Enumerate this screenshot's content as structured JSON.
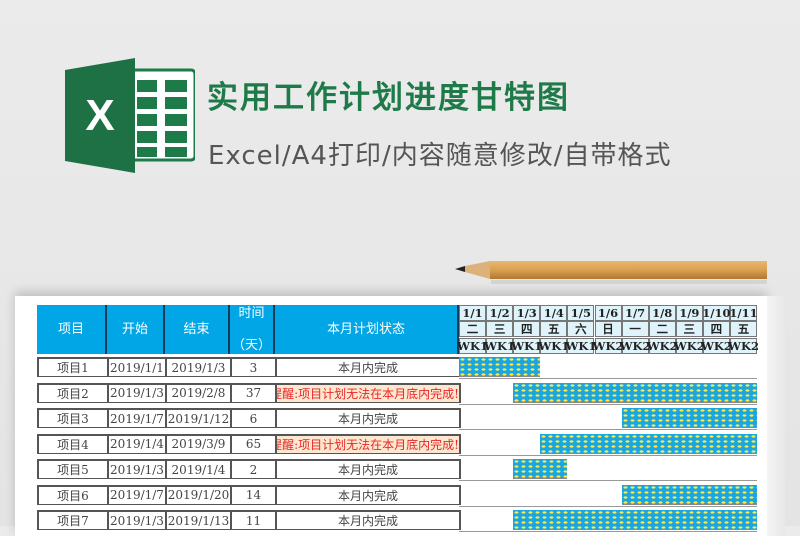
{
  "header": {
    "title": "实用工作计划进度甘特图",
    "subtitle": "Excel/A4打印/内容随意修改/自带格式",
    "logo_letter": "X"
  },
  "colors": {
    "title": "#1f7a4a",
    "header_bg": "#00a6e6",
    "bar": "#1aa6e0",
    "bar_dots": "#ffe84a",
    "warn_bg": "#fde8cf",
    "warn_text": "#e8262a"
  },
  "table": {
    "columns": [
      "项目",
      "开始",
      "结束",
      "时间（天）",
      "本月计划状态"
    ],
    "col_time_line1": "时间",
    "col_time_line2": "（天）",
    "rows": [
      {
        "name": "项目1",
        "start": "2019/1/1",
        "end": "2019/1/3",
        "days": "3",
        "status": "本月内完成",
        "warn": false
      },
      {
        "name": "项目2",
        "start": "2019/1/3",
        "end": "2019/2/8",
        "days": "37",
        "status": "提醒:项目计划无法在本月底内完成!",
        "warn": true
      },
      {
        "name": "项目3",
        "start": "2019/1/7",
        "end": "2019/1/12",
        "days": "6",
        "status": "本月内完成",
        "warn": false
      },
      {
        "name": "项目4",
        "start": "2019/1/4",
        "end": "2019/3/9",
        "days": "65",
        "status": "提醒:项目计划无法在本月底内完成!",
        "warn": true
      },
      {
        "name": "项目5",
        "start": "2019/1/3",
        "end": "2019/1/4",
        "days": "2",
        "status": "本月内完成",
        "warn": false
      },
      {
        "name": "项目6",
        "start": "2019/1/7",
        "end": "2019/1/20",
        "days": "14",
        "status": "本月内完成",
        "warn": false
      },
      {
        "name": "项目7",
        "start": "2019/1/3",
        "end": "2019/1/13",
        "days": "11",
        "status": "本月内完成",
        "warn": false
      }
    ]
  },
  "gantt": {
    "dates": [
      "1/1",
      "1/2",
      "1/3",
      "1/4",
      "1/5",
      "1/6",
      "1/7",
      "1/8",
      "1/9",
      "1/10",
      "1/11"
    ],
    "weekdays": [
      "二",
      "三",
      "四",
      "五",
      "六",
      "日",
      "一",
      "二",
      "三",
      "四",
      "五"
    ],
    "weeks": [
      "WK1",
      "WK1",
      "WK1",
      "WK1",
      "WK1",
      "WK2",
      "WK2",
      "WK2",
      "WK2",
      "WK2",
      "WK2"
    ]
  }
}
